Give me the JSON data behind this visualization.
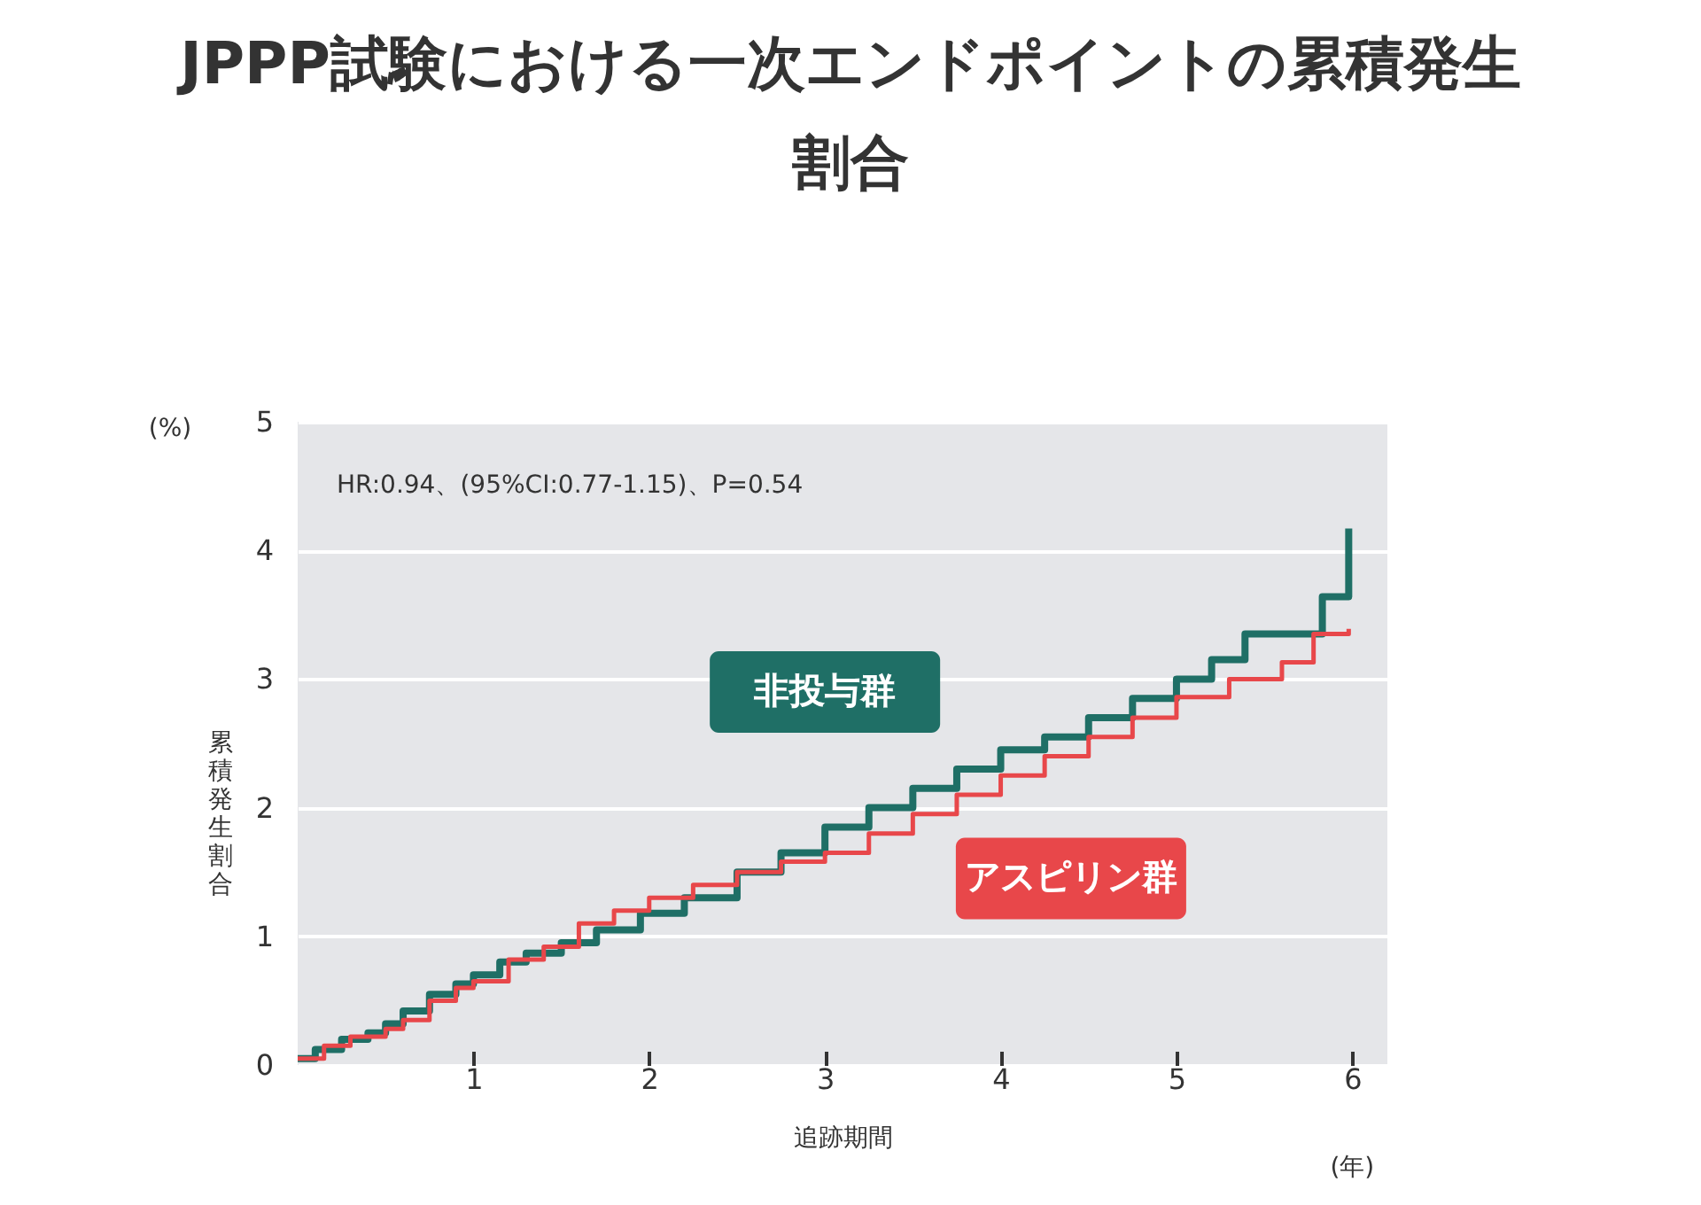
{
  "chart_data": {
    "type": "step",
    "title": "JPPP試験における一次エンドポイントの累積発生割合",
    "xlabel": "追跡期間",
    "ylabel": "累積発生割合",
    "annotations": [
      "HR:0.94、(95%CI:0.77-1.15)、P=0.54",
      "(%)",
      "(年)"
    ],
    "xlim": [
      0,
      6.2
    ],
    "xticks": [
      1,
      2,
      3,
      4,
      5,
      6
    ],
    "ylim": [
      0,
      5
    ],
    "yticks": [
      0,
      1,
      2,
      3,
      4,
      5
    ],
    "grid": "y",
    "series": [
      {
        "name": "非投与群",
        "color": "#1f6f66",
        "x": [
          0,
          0.1,
          0.25,
          0.4,
          0.5,
          0.6,
          0.75,
          0.9,
          1.0,
          1.15,
          1.3,
          1.5,
          1.7,
          1.95,
          2.2,
          2.5,
          2.75,
          3.0,
          3.25,
          3.5,
          3.75,
          4.0,
          4.25,
          4.5,
          4.75,
          5.0,
          5.2,
          5.39,
          5.83,
          5.98
        ],
        "values": [
          0.05,
          0.12,
          0.2,
          0.25,
          0.32,
          0.42,
          0.55,
          0.63,
          0.7,
          0.8,
          0.87,
          0.95,
          1.05,
          1.18,
          1.3,
          1.5,
          1.65,
          1.85,
          2.0,
          2.15,
          2.3,
          2.45,
          2.55,
          2.7,
          2.85,
          3.0,
          3.15,
          3.35,
          3.64,
          4.17
        ]
      },
      {
        "name": "アスピリン群",
        "color": "#e8474a",
        "x": [
          0,
          0.15,
          0.3,
          0.5,
          0.6,
          0.75,
          0.9,
          1.0,
          1.2,
          1.4,
          1.6,
          1.8,
          2.0,
          2.25,
          2.5,
          2.75,
          3.0,
          3.25,
          3.5,
          3.75,
          4.0,
          4.25,
          4.5,
          4.75,
          5.0,
          5.3,
          5.6,
          5.78,
          5.98
        ],
        "values": [
          0.05,
          0.15,
          0.22,
          0.28,
          0.35,
          0.5,
          0.6,
          0.65,
          0.82,
          0.92,
          1.1,
          1.2,
          1.3,
          1.4,
          1.5,
          1.58,
          1.65,
          1.8,
          1.95,
          2.1,
          2.25,
          2.4,
          2.55,
          2.7,
          2.86,
          3.0,
          3.13,
          3.35,
          3.39
        ]
      }
    ]
  }
}
